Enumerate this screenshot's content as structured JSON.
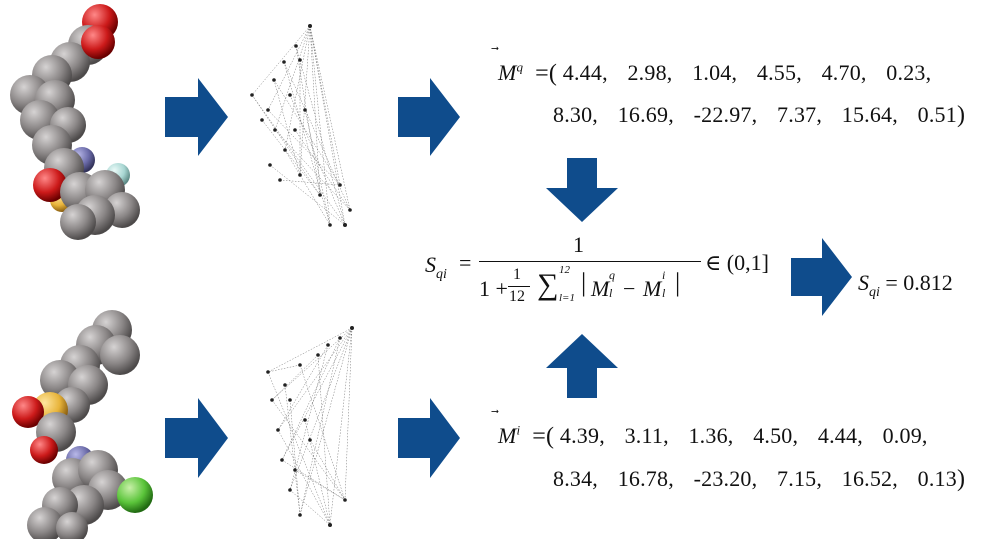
{
  "vector_q": {
    "symbol": "M",
    "superscript": "q",
    "row1": [
      "4.44,",
      "2.98,",
      "1.04,",
      "4.55,",
      "4.70,",
      "0.23,"
    ],
    "row2": [
      "8.30,",
      "16.69,",
      "-22.97,",
      "7.37,",
      "15.64,",
      "0.51"
    ]
  },
  "vector_i": {
    "symbol": "M",
    "superscript": "i",
    "row1": [
      "4.39,",
      "3.11,",
      "1.36,",
      "4.50,",
      "4.44,",
      "0.09,"
    ],
    "row2": [
      "8.34,",
      "16.78,",
      "-23.20,",
      "7.15,",
      "16.52,",
      "0.13"
    ]
  },
  "formula": {
    "lhs": "S",
    "lhs_sub": "qi",
    "numerator": "1",
    "one_plus": "1 +",
    "frac_num": "1",
    "frac_den": "12",
    "sum_upper": "12",
    "sum_lower": "l=1",
    "term_q": "M",
    "term_q_sup": "q",
    "term_i": "M",
    "term_i_sup": "i",
    "idx": "l",
    "range": "∈ (0,1]"
  },
  "result": {
    "lhs": "S",
    "lhs_sub": "qi",
    "value": "= 0.812"
  },
  "colors": {
    "arrow": "#0f4c8c",
    "atom_carbon": "#8a8686",
    "atom_oxygen": "#cc1a1a",
    "atom_nitrogen": "#6a6aa8",
    "atom_sulfur": "#e8b43a",
    "atom_chlorine": "#5ac43a",
    "atom_fluorine": "#a8d6d2"
  }
}
